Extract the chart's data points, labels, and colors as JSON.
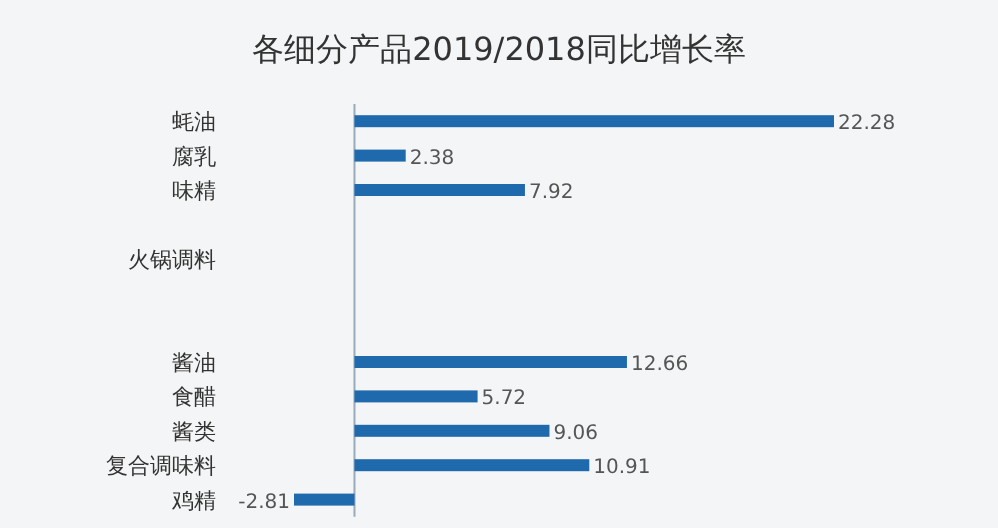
{
  "chart_data": {
    "type": "bar",
    "orientation": "horizontal",
    "title": "各细分产品2019/2018同比增长率",
    "categories": [
      "蚝油",
      "腐乳",
      "味精",
      null,
      "火锅调料",
      null,
      null,
      "酱油",
      "食醋",
      "酱类",
      "复合调味料",
      "鸡精"
    ],
    "values": [
      22.28,
      2.38,
      7.92,
      null,
      null,
      null,
      null,
      12.66,
      5.72,
      9.06,
      10.91,
      -2.81
    ],
    "color": "#1f6aad",
    "data_labels": true
  }
}
